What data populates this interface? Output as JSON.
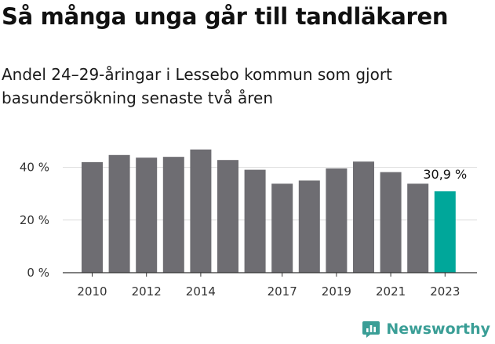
{
  "header": {
    "title": "Så många unga går till tandläkaren",
    "subtitle": "Andel 24–29-åringar i Lessebo kommun som gjort basundersökning senaste två åren"
  },
  "brand": {
    "name": "Newsworthy",
    "icon": "newsworthy-logo-icon",
    "color": "#3a9e96"
  },
  "colors": {
    "bar": "#6e6d72",
    "highlight": "#00a79a",
    "grid": "#dddddd",
    "baseline": "#333333"
  },
  "chart_data": {
    "type": "bar",
    "categories": [
      "2010",
      "2011",
      "2012",
      "2013",
      "2014",
      "2015",
      "2016",
      "2017",
      "2018",
      "2019",
      "2020",
      "2021",
      "2022",
      "2023"
    ],
    "values": [
      42,
      44.7,
      43.7,
      44,
      46.8,
      42.8,
      39.1,
      33.8,
      35,
      39.6,
      42.2,
      38.2,
      33.8,
      30.9
    ],
    "highlight_index": 13,
    "highlight_label": "30,9 %",
    "xtick_labels": [
      "2010",
      "",
      "2012",
      "",
      "2014",
      "",
      "",
      "2017",
      "",
      "2019",
      "",
      "2021",
      "",
      "2023"
    ],
    "yticks": [
      0,
      20,
      40
    ],
    "ytick_labels": [
      "0 %",
      "20 %",
      "40 %"
    ],
    "ylim": [
      0,
      50
    ],
    "grid": true,
    "title": "Så många unga går till tandläkaren",
    "xlabel": "",
    "ylabel": ""
  }
}
